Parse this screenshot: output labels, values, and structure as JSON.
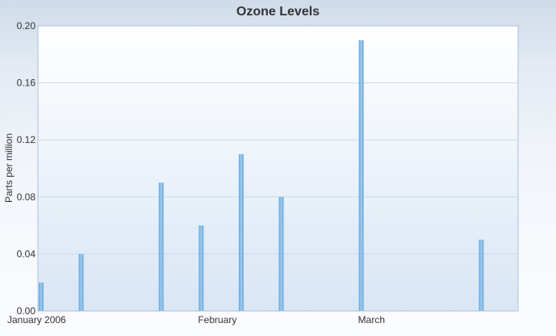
{
  "chart_data": {
    "type": "bar",
    "title": "Ozone Levels",
    "xlabel": "",
    "ylabel": "Parts per million",
    "ylim": [
      0,
      0.2
    ],
    "yticks": [
      "0.00",
      "0.04",
      "0.08",
      "0.12",
      "0.16",
      "0.20"
    ],
    "grid": true,
    "categories": [
      "January 2006",
      "",
      "",
      "",
      "February",
      "",
      "",
      "",
      "March",
      "",
      "",
      ""
    ],
    "values": [
      0.02,
      0.04,
      null,
      0.09,
      0.06,
      0.11,
      0.08,
      null,
      0.19,
      null,
      null,
      0.05
    ],
    "bar_color": "#7fb6e3"
  }
}
